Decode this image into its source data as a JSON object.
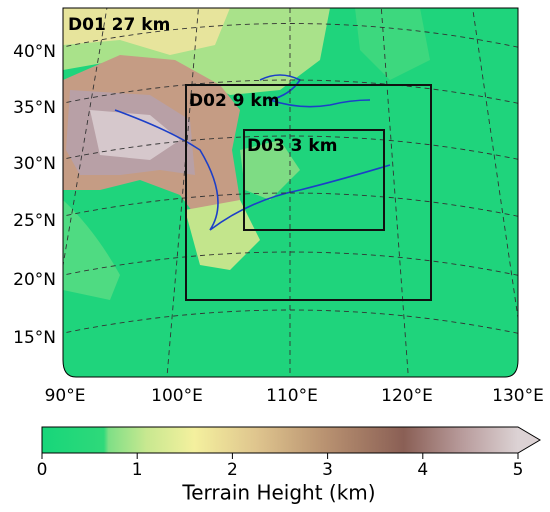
{
  "map": {
    "domains": [
      {
        "label": "D01 27 km"
      },
      {
        "label": "D02 9 km"
      },
      {
        "label": "D03 3 km"
      }
    ],
    "lat_labels": [
      "40°N",
      "35°N",
      "30°N",
      "25°N",
      "20°N",
      "15°N"
    ],
    "lon_labels": [
      "90°E",
      "100°E",
      "110°E",
      "120°E",
      "130°E"
    ]
  },
  "colorbar": {
    "title": "Terrain Height (km)",
    "range": [
      0,
      5
    ],
    "ticks": [
      0,
      1,
      2,
      3,
      4,
      5
    ]
  }
}
